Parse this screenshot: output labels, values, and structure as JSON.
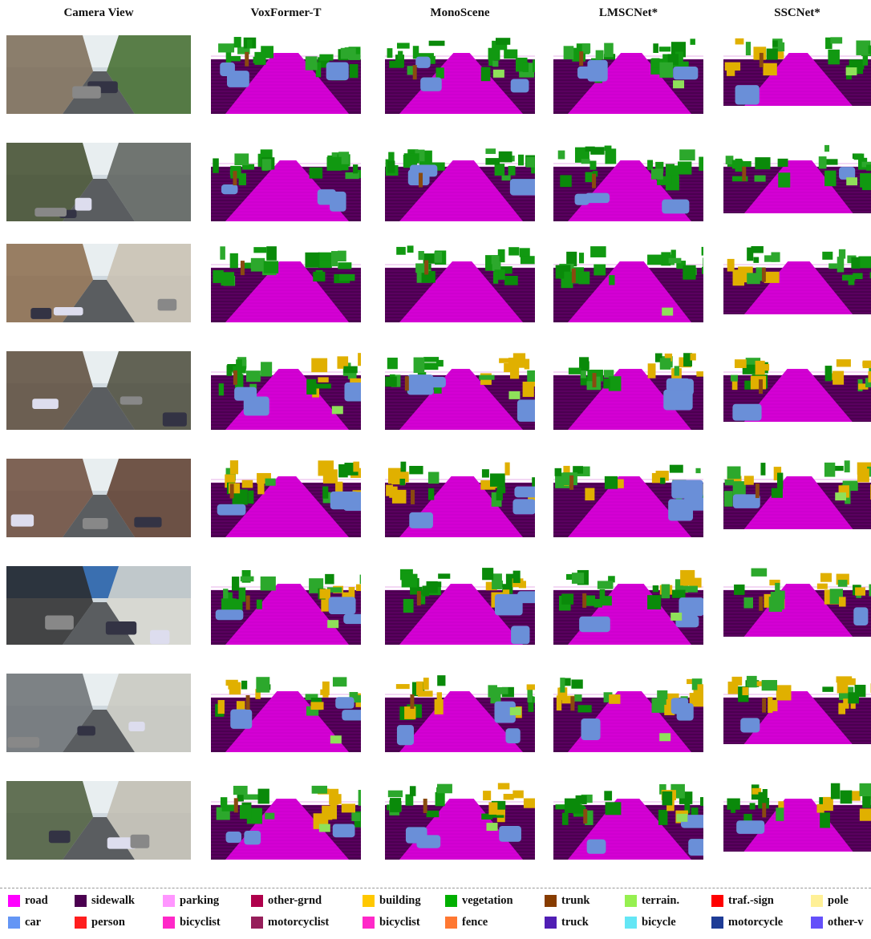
{
  "columns": [
    "Camera View",
    "VoxFormer-T",
    "MonoScene",
    "LMSCNet*",
    "SSCNet*"
  ],
  "rows": 8,
  "legend": [
    {
      "label": "road",
      "color": "#ff00ff"
    },
    {
      "label": "sidewalk",
      "color": "#4b0050"
    },
    {
      "label": "parking",
      "color": "#ff96ff"
    },
    {
      "label": "other-grnd",
      "color": "#af004b"
    },
    {
      "label": "building",
      "color": "#ffc800"
    },
    {
      "label": "vegetation",
      "color": "#00af00"
    },
    {
      "label": "trunk",
      "color": "#873c00"
    },
    {
      "label": "terrain.",
      "color": "#96f050"
    },
    {
      "label": "traf.-sign",
      "color": "#ff0000"
    },
    {
      "label": "pole",
      "color": "#fff096"
    },
    {
      "label": "car",
      "color": "#6496f5"
    },
    {
      "label": "person",
      "color": "#ff1e1e"
    },
    {
      "label": "bicyclist",
      "color": "#ff28c8"
    },
    {
      "label": "motorcyclist",
      "color": "#961e5a"
    },
    {
      "label": "bicyclist",
      "color": "#ff28c8"
    },
    {
      "label": "fence",
      "color": "#ff7832"
    },
    {
      "label": "truck",
      "color": "#501eb4"
    },
    {
      "label": "bicycle",
      "color": "#64e6f5"
    },
    {
      "label": "motorcycle",
      "color": "#1e3c96"
    },
    {
      "label": "other-v",
      "color": "#6450fa"
    }
  ]
}
